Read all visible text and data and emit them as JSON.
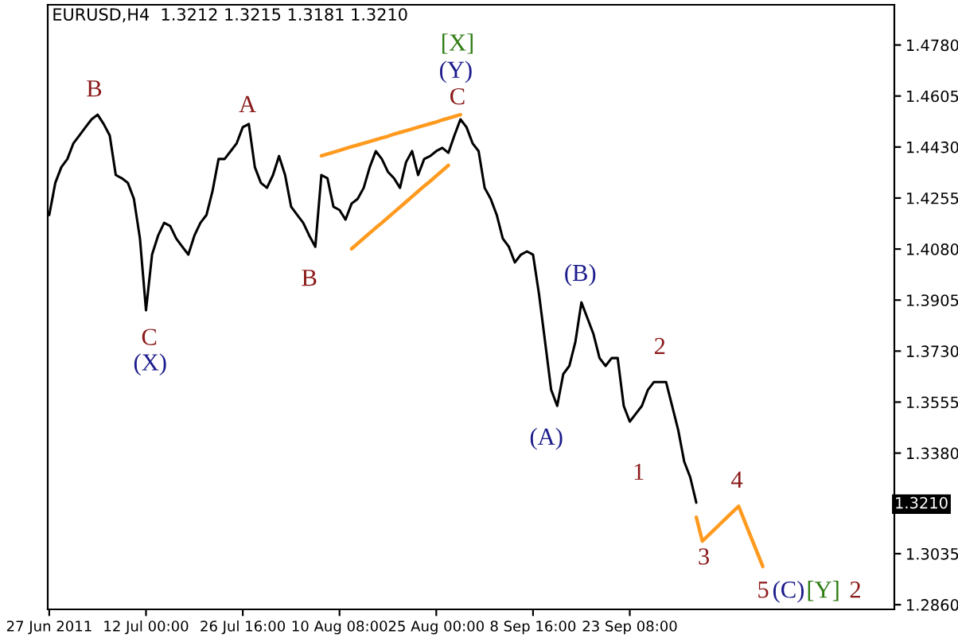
{
  "chart_data": {
    "type": "line",
    "title": "EURUSD,H4  1.3212 1.3215 1.3181 1.3210",
    "categories": [
      "27 Jun 2011",
      null,
      null,
      null,
      null,
      null,
      null,
      null,
      null,
      null,
      null,
      null,
      null,
      null,
      null,
      null,
      "12 Jul 00:00",
      null,
      null,
      null,
      null,
      null,
      null,
      null,
      null,
      null,
      null,
      null,
      null,
      null,
      null,
      null,
      "26 Jul 16:00",
      null,
      null,
      null,
      null,
      null,
      null,
      null,
      null,
      null,
      null,
      null,
      null,
      null,
      null,
      null,
      "10 Aug 08:00",
      null,
      null,
      null,
      null,
      null,
      null,
      null,
      null,
      null,
      null,
      null,
      null,
      null,
      null,
      null,
      "25 Aug 00:00",
      null,
      null,
      null,
      null,
      null,
      null,
      null,
      null,
      null,
      null,
      null,
      null,
      null,
      null,
      null,
      "8 Sep 16:00",
      null,
      null,
      null,
      null,
      null,
      null,
      null,
      null,
      null,
      null,
      null,
      null,
      null,
      null,
      null,
      "23 Sep 08:00",
      null,
      null,
      null,
      null,
      null,
      null,
      null,
      null,
      null,
      null,
      null,
      null,
      null,
      null,
      null,
      null,
      null,
      null,
      null,
      null,
      null,
      null,
      null,
      null,
      null,
      null,
      null,
      null,
      null,
      null,
      null,
      null,
      null,
      null,
      null,
      null,
      null,
      null,
      null,
      null,
      null,
      null,
      null
    ],
    "ylim": [
      1.2844,
      1.4918
    ],
    "yticks": [
      {
        "value": 1.286,
        "label": "1.2860"
      },
      {
        "value": 1.3035,
        "label": "1.3035"
      },
      {
        "value": 1.338,
        "label": "1.3380"
      },
      {
        "value": 1.3555,
        "label": "1.3555"
      },
      {
        "value": 1.373,
        "label": "1.3730"
      },
      {
        "value": 1.3905,
        "label": "1.3905"
      },
      {
        "value": 1.408,
        "label": "1.4080"
      },
      {
        "value": 1.4255,
        "label": "1.4255"
      },
      {
        "value": 1.443,
        "label": "1.4430"
      },
      {
        "value": 1.4605,
        "label": "1.4605"
      },
      {
        "value": 1.478,
        "label": "1.4780"
      }
    ],
    "grid": false,
    "legend": false,
    "series": [
      {
        "color": "#000000",
        "values": [
          1.4197,
          1.4307,
          1.4361,
          1.4389,
          1.4443,
          1.447,
          1.4498,
          1.4525,
          1.4541,
          1.4509,
          1.447,
          1.4334,
          1.4323,
          1.4307,
          1.4252,
          1.4116,
          1.387,
          1.4061,
          1.4126,
          1.417,
          1.4159,
          1.4116,
          1.4088,
          1.4061,
          1.4126,
          1.417,
          1.4197,
          1.4279,
          1.4389,
          1.4389,
          1.4416,
          1.4443,
          1.4498,
          1.4509,
          1.4361,
          1.4307,
          1.429,
          1.4334,
          1.4399,
          1.4334,
          1.4225,
          1.4197,
          1.417,
          1.4126,
          1.4088,
          1.4334,
          1.4323,
          1.4225,
          1.4214,
          1.4181,
          1.4236,
          1.4252,
          1.429,
          1.4361,
          1.4416,
          1.4389,
          1.4345,
          1.4323,
          1.429,
          1.4378,
          1.4416,
          1.4334,
          1.4389,
          1.4399,
          1.4416,
          1.4427,
          1.441,
          1.447,
          1.4525,
          1.4498,
          1.4443,
          1.4416,
          1.429,
          1.4252,
          1.4197,
          1.4116,
          1.4088,
          1.4034,
          1.4061,
          1.4072,
          1.4061,
          1.3924,
          1.3761,
          1.3597,
          1.3542,
          1.3651,
          1.3679,
          1.3761,
          1.3897,
          1.3843,
          1.3788,
          1.3706,
          1.3679,
          1.3706,
          1.3706,
          1.3542,
          1.3488,
          1.3515,
          1.3542,
          1.3597,
          1.3624,
          1.3624,
          1.3624,
          1.3542,
          1.346,
          1.3351,
          1.3297,
          1.321,
          null,
          null,
          null,
          null,
          null,
          null,
          null,
          null,
          null,
          null,
          null,
          null,
          null,
          null,
          null,
          null,
          null,
          null,
          null,
          null,
          null,
          null,
          null,
          null,
          null,
          null,
          null,
          null,
          null,
          null,
          null,
          null
        ]
      },
      {
        "color": "#ff9a1f",
        "values": [
          null,
          null,
          null,
          null,
          null,
          null,
          null,
          null,
          null,
          null,
          null,
          null,
          null,
          null,
          null,
          null,
          null,
          null,
          null,
          null,
          null,
          null,
          null,
          null,
          null,
          null,
          null,
          null,
          null,
          null,
          null,
          null,
          null,
          null,
          null,
          null,
          null,
          null,
          null,
          null,
          null,
          null,
          null,
          null,
          null,
          1.44,
          1.4406,
          1.4412,
          1.4418,
          1.4425,
          1.4431,
          1.4437,
          1.4443,
          1.4449,
          1.4455,
          1.4461,
          1.4467,
          1.4474,
          1.448,
          1.4486,
          1.4492,
          1.4498,
          1.4504,
          1.451,
          1.4516,
          1.4523,
          1.4529,
          1.4535,
          1.4541,
          null,
          null,
          null,
          null,
          null,
          null,
          null,
          null,
          null,
          null,
          null,
          null,
          null,
          null,
          null,
          null,
          null,
          null,
          null,
          null,
          null,
          null,
          null,
          null,
          null,
          null,
          null,
          null,
          null,
          null,
          null,
          null,
          null,
          null,
          null,
          null,
          null,
          null,
          null,
          null,
          null,
          null,
          null,
          null,
          null,
          null,
          null,
          null,
          null,
          null,
          null,
          null,
          null,
          null,
          null,
          null,
          null,
          null,
          null,
          null,
          null,
          null,
          null,
          null,
          null,
          null,
          null,
          null,
          null,
          null,
          null
        ]
      },
      {
        "color": "#ff9a1f",
        "values": [
          null,
          null,
          null,
          null,
          null,
          null,
          null,
          null,
          null,
          null,
          null,
          null,
          null,
          null,
          null,
          null,
          null,
          null,
          null,
          null,
          null,
          null,
          null,
          null,
          null,
          null,
          null,
          null,
          null,
          null,
          null,
          null,
          null,
          null,
          null,
          null,
          null,
          null,
          null,
          null,
          null,
          null,
          null,
          null,
          null,
          null,
          null,
          null,
          null,
          null,
          1.4081,
          1.4099,
          1.4117,
          1.4135,
          1.4153,
          1.417,
          1.4188,
          1.4206,
          1.4224,
          1.4242,
          1.426,
          1.4278,
          1.4296,
          1.4313,
          1.4331,
          1.4349,
          1.4367,
          null,
          null,
          null,
          null,
          null,
          null,
          null,
          null,
          null,
          null,
          null,
          null,
          null,
          null,
          null,
          null,
          null,
          null,
          null,
          null,
          null,
          null,
          null,
          null,
          null,
          null,
          null,
          null,
          null,
          null,
          null,
          null,
          null,
          null,
          null,
          null,
          null,
          null,
          null,
          null,
          null,
          null,
          null,
          null,
          null,
          null,
          null,
          null,
          null,
          null,
          null,
          null,
          null,
          null,
          null,
          null,
          null,
          null,
          null,
          null,
          null,
          null,
          null,
          null,
          null,
          null,
          null,
          null,
          null,
          null,
          null,
          null,
          null
        ]
      },
      {
        "color": "#ff9a1f",
        "values": [
          null,
          null,
          null,
          null,
          null,
          null,
          null,
          null,
          null,
          null,
          null,
          null,
          null,
          null,
          null,
          null,
          null,
          null,
          null,
          null,
          null,
          null,
          null,
          null,
          null,
          null,
          null,
          null,
          null,
          null,
          null,
          null,
          null,
          null,
          null,
          null,
          null,
          null,
          null,
          null,
          null,
          null,
          null,
          null,
          null,
          null,
          null,
          null,
          null,
          null,
          null,
          null,
          null,
          null,
          null,
          null,
          null,
          null,
          null,
          null,
          null,
          null,
          null,
          null,
          null,
          null,
          null,
          null,
          null,
          null,
          null,
          null,
          null,
          null,
          null,
          null,
          null,
          null,
          null,
          null,
          null,
          null,
          null,
          null,
          null,
          null,
          null,
          null,
          null,
          null,
          null,
          null,
          null,
          null,
          null,
          null,
          null,
          null,
          null,
          null,
          null,
          null,
          null,
          null,
          null,
          null,
          null,
          1.316,
          1.3078,
          1.3098,
          1.3118,
          1.3138,
          1.3158,
          1.3178,
          1.3198,
          1.3146,
          1.3094,
          1.3043,
          1.2991,
          null,
          null,
          null,
          null,
          null,
          null,
          null,
          null,
          null,
          null,
          null,
          null,
          null,
          null,
          null,
          null,
          null,
          null,
          null,
          null,
          null
        ]
      }
    ],
    "annotations": [
      "B",
      "C",
      "(X)",
      "A",
      "B",
      "C",
      "(Y)",
      "[X]",
      "(B)",
      "(A)",
      "2",
      "1",
      "3",
      "4",
      "5",
      "(C)",
      "[Y]",
      "2",
      "1.3210"
    ]
  }
}
